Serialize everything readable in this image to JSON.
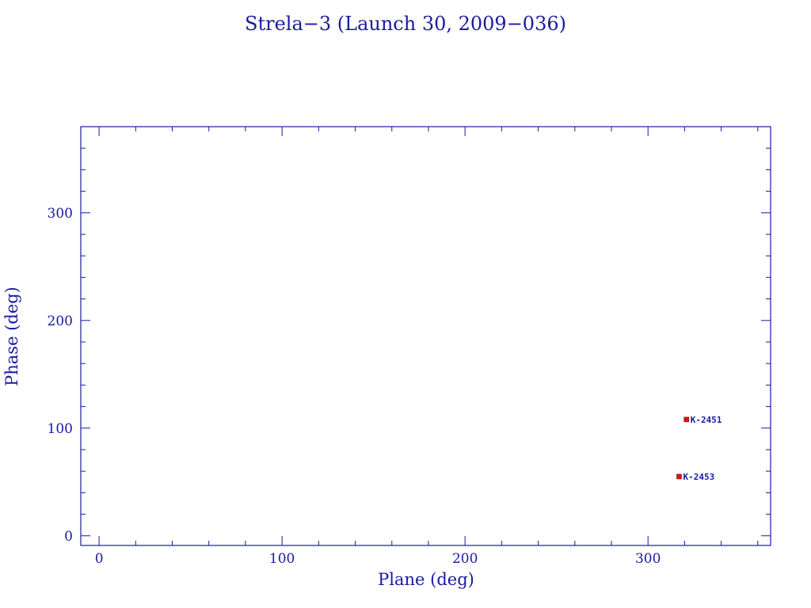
{
  "chart_data": {
    "type": "scatter",
    "title": "Strela−3 (Launch 30, 2009−036)",
    "xlabel": "Plane (deg)",
    "ylabel": "Phase (deg)",
    "xlim": [
      -10,
      367
    ],
    "ylim": [
      -9,
      380
    ],
    "x_ticks": [
      0,
      100,
      200,
      300
    ],
    "y_ticks": [
      0,
      100,
      200,
      300
    ],
    "x_minor_step": 20,
    "y_minor_step": 20,
    "grid": false,
    "points": [
      {
        "label": "K-2451",
        "x": 321,
        "y": 108
      },
      {
        "label": "K-2453",
        "x": 317,
        "y": 55
      }
    ],
    "colors": {
      "axis": "#1a1aa0",
      "marker": "#e01010",
      "text": "#1a1aa0"
    }
  }
}
